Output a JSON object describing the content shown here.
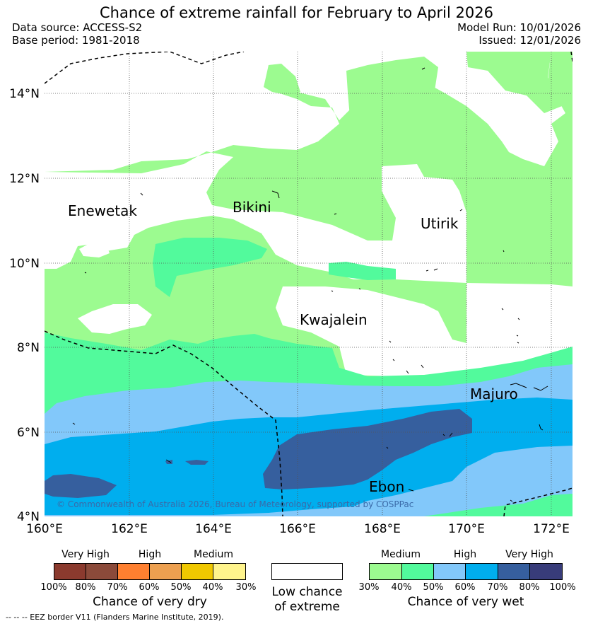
{
  "title": "Chance of extreme rainfall for February to April 2026",
  "meta": {
    "data_source": "Data source: ACCESS-S2",
    "base_period": "Base period: 1981-2018",
    "model_run": "Model Run: 10/01/2026",
    "issued": "Issued: 12/01/2026"
  },
  "map": {
    "lat_labels": [
      "14°N",
      "12°N",
      "10°N",
      "8°N",
      "6°N",
      "4°N"
    ],
    "lon_labels": [
      "160°E",
      "162°E",
      "164°E",
      "166°E",
      "168°E",
      "170°E",
      "172°E"
    ],
    "places": [
      "Enewetak",
      "Bikini",
      "Utirik",
      "Kwajalein",
      "Majuro",
      "Ebon"
    ],
    "copyright": "© Commonwealth of Australia 2026, Bureau of Meteorology, supported by COSPPac"
  },
  "legend": {
    "dry": {
      "categories": [
        "Very High",
        "High",
        "Medium"
      ],
      "colors": [
        "#8b3a2e",
        "#8b4a3a",
        "#ff8030",
        "#eda050",
        "#f0c800",
        "#fff48c"
      ],
      "ticks": [
        "100%",
        "80%",
        "70%",
        "60%",
        "50%",
        "40%",
        "30%"
      ],
      "title": "Chance of very dry"
    },
    "low": {
      "title_line1": "Low chance",
      "title_line2": "of extreme"
    },
    "wet": {
      "categories": [
        "Medium",
        "High",
        "Very High"
      ],
      "colors": [
        "#9cfb90",
        "#52fa9c",
        "#82c8fa",
        "#00aeee",
        "#365f9e",
        "#383c7a"
      ],
      "ticks": [
        "30%",
        "40%",
        "50%",
        "60%",
        "70%",
        "80%",
        "100%"
      ],
      "title": "Chance of very wet"
    },
    "eez_note": "-- -- -- EEZ border V11 (Flanders Marine Institute, 2019)."
  }
}
